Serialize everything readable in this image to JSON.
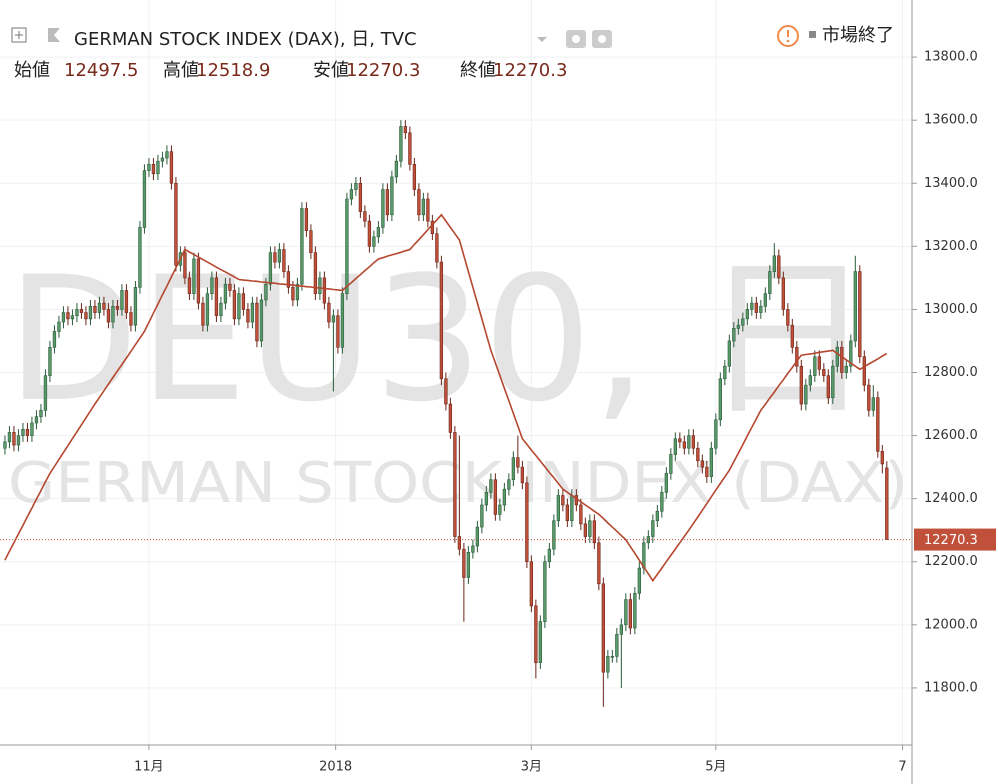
{
  "header": {
    "title": "GERMAN STOCK INDEX (DAX), 日, TVC",
    "open_label": "始値",
    "high_label": "高値",
    "low_label": "安値",
    "close_label": "終値",
    "status": "市場終了"
  },
  "chart_data": {
    "type": "candlestick",
    "watermark": {
      "symbol": "DEU30, 日",
      "name": "GERMAN STOCK INDEX (DAX)"
    },
    "up_color": "#5a9a6a",
    "down_color": "#c0503a",
    "up_border": "#2a5a3a",
    "down_border": "#6b2418",
    "grid": true,
    "xlim": [
      -1.1,
      201.6
    ],
    "xticks": [
      {
        "value": 32,
        "label": "11月"
      },
      {
        "value": 73.5,
        "label": "2018"
      },
      {
        "value": 117,
        "label": "3月"
      },
      {
        "value": 158,
        "label": "5月"
      },
      {
        "value": 199.5,
        "label": "7"
      }
    ],
    "ylim": [
      11619,
      13981
    ],
    "yticks": [
      {
        "value": 11800,
        "label": "11800.0"
      },
      {
        "value": 12000,
        "label": "12000.0"
      },
      {
        "value": 12200,
        "label": "12200.0"
      },
      {
        "value": 12400,
        "label": "12400.0"
      },
      {
        "value": 12600,
        "label": "12600.0"
      },
      {
        "value": 12800,
        "label": "12800.0"
      },
      {
        "value": 13000,
        "label": "13000.0"
      },
      {
        "value": 13200,
        "label": "13200.0"
      },
      {
        "value": 13400,
        "label": "13400.0"
      },
      {
        "value": 13600,
        "label": "13600.0"
      },
      {
        "value": 13800,
        "label": "13800.0"
      }
    ],
    "ohlc": {
      "open": [
        12560,
        12580,
        12610,
        12570,
        12600,
        12620,
        12600,
        12640,
        12660,
        12680,
        12790,
        12880,
        12930,
        12960,
        12990,
        12970,
        12980,
        13000,
        12990,
        12970,
        13010,
        12990,
        13020,
        13000,
        12960,
        13010,
        13000,
        13060,
        12990,
        12950,
        13070,
        13260,
        13440,
        13460,
        13430,
        13470,
        13480,
        13500,
        13400,
        13140,
        13180,
        13100,
        13050,
        13160,
        13020,
        12950,
        13050,
        13100,
        12980,
        13020,
        13080,
        13060,
        12970,
        13050,
        13000,
        12960,
        13020,
        12900,
        13030,
        13080,
        13180,
        13150,
        13190,
        13120,
        13070,
        13030,
        13080,
        13320,
        13250,
        13180,
        13050,
        13100,
        13020,
        12960,
        12980,
        12880,
        13050,
        13350,
        13380,
        13400,
        13310,
        13280,
        13200,
        13230,
        13260,
        13380,
        13300,
        13420,
        13470,
        13580,
        13560,
        13460,
        13380,
        13300,
        13350,
        13280,
        13240,
        13150,
        12780,
        12700,
        12610,
        12280,
        12240,
        12150,
        12230,
        12250,
        12310,
        12380,
        12420,
        12460,
        12350,
        12380,
        12430,
        12460,
        12530,
        12500,
        12450,
        12200,
        12060,
        11880,
        12010,
        12200,
        12240,
        12330,
        12410,
        12380,
        12330,
        12410,
        12380,
        12320,
        12280,
        12330,
        12260,
        12130,
        11850,
        11900,
        11900,
        11970,
        12000,
        12080,
        11990,
        12100,
        12180,
        12260,
        12280,
        12330,
        12360,
        12420,
        12480,
        12540,
        12590,
        12580,
        12560,
        12600,
        12560,
        12520,
        12500,
        12470,
        12560,
        12650,
        12780,
        12820,
        12900,
        12940,
        12950,
        12970,
        13000,
        13020,
        12990,
        13010,
        13050,
        13120,
        13170,
        13100,
        13000,
        12950,
        12880,
        12820,
        12700,
        12760,
        12790,
        12850,
        12810,
        12790,
        12720,
        12820,
        12880,
        12800,
        12820,
        12900,
        13120,
        12850,
        12760,
        12680,
        12720,
        12550,
        12497.5
      ],
      "high": [
        12600,
        12630,
        12630,
        12620,
        12640,
        12640,
        12660,
        12680,
        12700,
        12810,
        12900,
        12950,
        12980,
        13010,
        13010,
        13000,
        13020,
        13020,
        13010,
        13030,
        13030,
        13040,
        13040,
        13020,
        13030,
        13030,
        13080,
        13080,
        13010,
        13090,
        13280,
        13460,
        13480,
        13480,
        13490,
        13500,
        13520,
        13520,
        13420,
        13200,
        13200,
        13120,
        13180,
        13180,
        13040,
        13070,
        13120,
        13120,
        13040,
        13100,
        13100,
        13080,
        13070,
        13070,
        13020,
        13040,
        13040,
        13050,
        13100,
        13200,
        13200,
        13210,
        13210,
        13140,
        13090,
        13100,
        13340,
        13340,
        13270,
        13200,
        13120,
        13120,
        13040,
        13000,
        13000,
        13070,
        13370,
        13400,
        13420,
        13420,
        13330,
        13300,
        13250,
        13280,
        13400,
        13400,
        13440,
        13490,
        13600,
        13600,
        13580,
        13480,
        13400,
        13370,
        13370,
        13300,
        13260,
        13170,
        12800,
        12720,
        12630,
        12600,
        12260,
        12250,
        12270,
        12330,
        12400,
        12440,
        12480,
        12480,
        12400,
        12450,
        12480,
        12550,
        12600,
        12520,
        12470,
        12220,
        12080,
        12030,
        12220,
        12260,
        12350,
        12430,
        12430,
        12400,
        12430,
        12430,
        12400,
        12340,
        12350,
        12350,
        12280,
        12150,
        11920,
        11920,
        11990,
        12020,
        12100,
        12100,
        12120,
        12200,
        12280,
        12300,
        12350,
        12380,
        12440,
        12500,
        12560,
        12610,
        12610,
        12600,
        12620,
        12620,
        12580,
        12540,
        12520,
        12580,
        12670,
        12800,
        12840,
        12920,
        12960,
        12970,
        12990,
        13020,
        13040,
        13040,
        13030,
        13070,
        13140,
        13210,
        13190,
        13120,
        13020,
        12970,
        12900,
        12840,
        12780,
        12810,
        12870,
        12870,
        12830,
        12810,
        12840,
        12900,
        12900,
        12840,
        12920,
        13170,
        13140,
        12870,
        12780,
        12760,
        12740,
        12570,
        12518.9
      ],
      "low": [
        12540,
        12560,
        12550,
        12550,
        12580,
        12580,
        12580,
        12620,
        12640,
        12660,
        12770,
        12860,
        12910,
        12940,
        12950,
        12950,
        12960,
        12970,
        12950,
        12950,
        12970,
        12970,
        12980,
        12940,
        12940,
        12980,
        12980,
        12970,
        12930,
        12930,
        13050,
        13240,
        13420,
        13410,
        13410,
        13450,
        13460,
        13380,
        13120,
        13120,
        13080,
        13030,
        13030,
        13000,
        12930,
        12930,
        13030,
        12960,
        12960,
        13000,
        13040,
        12950,
        12950,
        12980,
        12940,
        12940,
        12880,
        12880,
        13010,
        13060,
        13130,
        13130,
        13100,
        13050,
        13010,
        13010,
        13060,
        13230,
        13160,
        13030,
        13030,
        13000,
        12940,
        12740,
        12860,
        12860,
        13030,
        13330,
        13360,
        13290,
        13260,
        13180,
        13180,
        13210,
        13240,
        13280,
        13280,
        13400,
        13450,
        13540,
        13440,
        13360,
        13280,
        13280,
        13260,
        13220,
        13130,
        12760,
        12680,
        12590,
        12260,
        12220,
        12010,
        12130,
        12210,
        12230,
        12290,
        12360,
        12400,
        12330,
        12330,
        12360,
        12410,
        12440,
        12480,
        12430,
        12180,
        12040,
        11830,
        11860,
        11990,
        12180,
        12220,
        12310,
        12360,
        12310,
        12310,
        12360,
        12300,
        12260,
        12260,
        12240,
        12110,
        11740,
        11830,
        11880,
        11880,
        11800,
        11980,
        11970,
        11970,
        12080,
        12160,
        12240,
        12260,
        12310,
        12340,
        12400,
        12460,
        12520,
        12560,
        12540,
        12540,
        12540,
        12500,
        12480,
        12450,
        12450,
        12540,
        12630,
        12760,
        12800,
        12880,
        12920,
        12930,
        12950,
        12980,
        12970,
        12970,
        12990,
        13030,
        13100,
        13080,
        12980,
        12930,
        12860,
        12800,
        12680,
        12680,
        12740,
        12770,
        12790,
        12770,
        12700,
        12700,
        12800,
        12780,
        12780,
        12800,
        12880,
        12830,
        12740,
        12660,
        12660,
        12530,
        12480,
        12270.3
      ],
      "close": [
        12580,
        12610,
        12570,
        12600,
        12620,
        12600,
        12640,
        12660,
        12680,
        12790,
        12880,
        12930,
        12960,
        12990,
        12970,
        12980,
        13000,
        12990,
        12970,
        13010,
        12990,
        13020,
        13000,
        12960,
        13010,
        13000,
        13060,
        12990,
        12950,
        13070,
        13260,
        13440,
        13460,
        13430,
        13470,
        13480,
        13500,
        13400,
        13140,
        13180,
        13100,
        13050,
        13160,
        13020,
        12950,
        13050,
        13100,
        12980,
        13020,
        13080,
        13060,
        12970,
        13050,
        13000,
        12960,
        13020,
        12900,
        13030,
        13080,
        13180,
        13150,
        13190,
        13120,
        13070,
        13030,
        13080,
        13320,
        13250,
        13180,
        13050,
        13100,
        13020,
        12960,
        12980,
        12880,
        13050,
        13350,
        13380,
        13400,
        13310,
        13280,
        13200,
        13230,
        13260,
        13380,
        13300,
        13420,
        13470,
        13580,
        13560,
        13460,
        13380,
        13300,
        13350,
        13280,
        13240,
        13150,
        12780,
        12700,
        12610,
        12280,
        12240,
        12150,
        12230,
        12250,
        12310,
        12380,
        12420,
        12460,
        12350,
        12380,
        12430,
        12460,
        12530,
        12500,
        12450,
        12200,
        12060,
        11880,
        12010,
        12200,
        12240,
        12330,
        12410,
        12380,
        12330,
        12410,
        12380,
        12320,
        12280,
        12330,
        12260,
        12130,
        11850,
        11900,
        11900,
        11970,
        12000,
        12080,
        11990,
        12100,
        12180,
        12260,
        12280,
        12330,
        12360,
        12420,
        12480,
        12540,
        12590,
        12580,
        12560,
        12600,
        12560,
        12520,
        12500,
        12470,
        12560,
        12650,
        12780,
        12820,
        12900,
        12940,
        12950,
        12970,
        13000,
        13020,
        12990,
        13010,
        13050,
        13120,
        13170,
        13100,
        13000,
        12950,
        12880,
        12820,
        12700,
        12760,
        12790,
        12850,
        12810,
        12790,
        12720,
        12820,
        12880,
        12800,
        12820,
        12900,
        13120,
        12850,
        12760,
        12680,
        12720,
        12550,
        12510,
        12270.3
      ]
    },
    "moving_average": {
      "color": "#b5472f",
      "values": [
        12205,
        12233,
        12260,
        12288,
        12315,
        12343,
        12370,
        12398,
        12425,
        12453,
        12480,
        12502,
        12524,
        12546,
        12568,
        12590,
        12612,
        12634,
        12656,
        12678,
        12700,
        12721,
        12742,
        12763,
        12784,
        12805,
        12825,
        12846,
        12867,
        12888,
        12909,
        12930,
        12959,
        12988,
        13017,
        13046,
        13074,
        13103,
        13132,
        13161,
        13190,
        13182,
        13174,
        13166,
        13158,
        13150,
        13142,
        13134,
        13126,
        13119,
        13111,
        13103,
        13095,
        13093,
        13092,
        13090,
        13089,
        13087,
        13086,
        13084,
        13083,
        13081,
        13080,
        13078,
        13077,
        13075,
        13074,
        13072,
        13071,
        13069,
        13068,
        13066,
        13065,
        13063,
        13062,
        13060,
        13073,
        13085,
        13098,
        13110,
        13123,
        13135,
        13148,
        13160,
        13164,
        13169,
        13173,
        13177,
        13181,
        13186,
        13190,
        13206,
        13221,
        13237,
        13253,
        13269,
        13284,
        13300,
        13280,
        13260,
        13240,
        13220,
        13170,
        13120,
        13070,
        13020,
        12970,
        12920,
        12870,
        12830,
        12790,
        12750,
        12710,
        12670,
        12630,
        12590,
        12572,
        12554,
        12537,
        12519,
        12501,
        12483,
        12466,
        12448,
        12430,
        12420,
        12410,
        12400,
        12390,
        12380,
        12370,
        12360,
        12350,
        12337,
        12323,
        12310,
        12297,
        12283,
        12270,
        12248,
        12227,
        12205,
        12183,
        12162,
        12140,
        12160,
        12180,
        12200,
        12220,
        12240,
        12260,
        12280,
        12300,
        12321,
        12342,
        12363,
        12384,
        12406,
        12427,
        12448,
        12469,
        12490,
        12517,
        12544,
        12571,
        12599,
        12626,
        12653,
        12680,
        12699,
        12719,
        12738,
        12758,
        12777,
        12797,
        12816,
        12836,
        12855,
        12857,
        12859,
        12861,
        12864,
        12866,
        12868,
        12870,
        12860,
        12850,
        12840,
        12830,
        12820,
        12810,
        12818,
        12827,
        12835,
        12843,
        12852,
        12860
      ]
    }
  }
}
